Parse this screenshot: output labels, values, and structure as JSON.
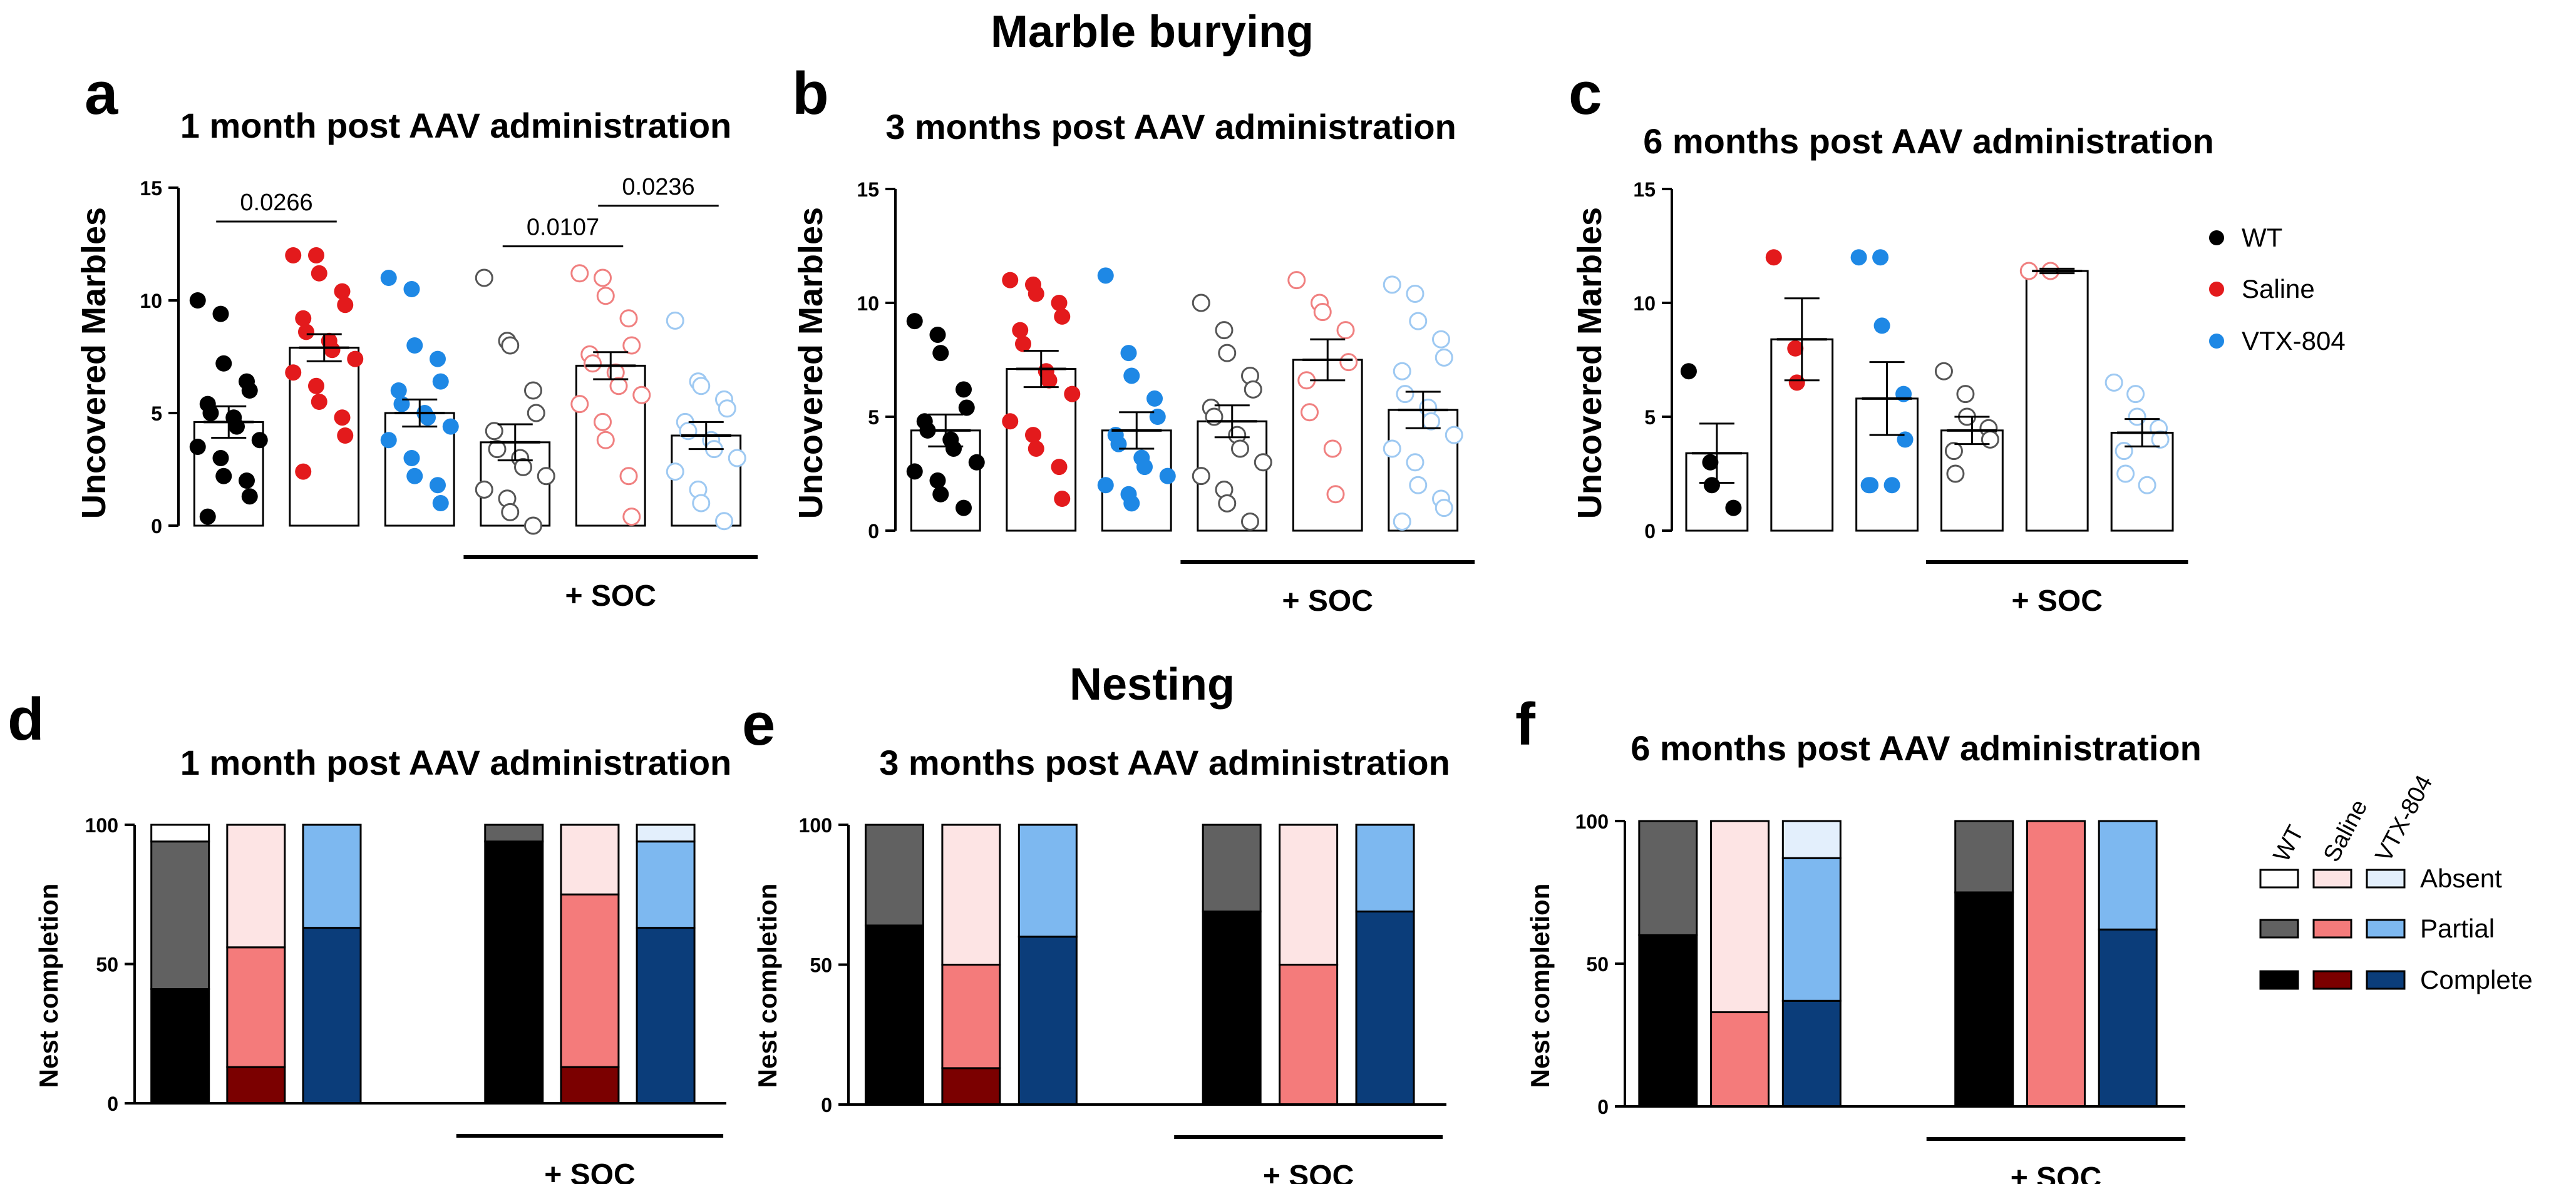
{
  "figure": {
    "section_titles": {
      "marble": "Marble burying",
      "nesting": "Nesting"
    },
    "soc_label": "+ SOC",
    "colors": {
      "wt": "#000000",
      "saline": "#e31a1c",
      "vtx": "#1e88e5",
      "wt_soc": "#555555",
      "saline_soc": "#f08080",
      "vtx_soc": "#9ec9f2",
      "nest_wt_complete": "#000000",
      "nest_wt_partial": "#616161",
      "nest_wt_absent": "#ffffff",
      "nest_saline_complete": "#7b0000",
      "nest_saline_partial": "#f47b7b",
      "nest_saline_absent": "#fde4e4",
      "nest_vtx_complete": "#0b3d7a",
      "nest_vtx_partial": "#7db8f0",
      "nest_vtx_absent": "#e3effc"
    },
    "legend_marble": [
      {
        "label": "WT",
        "color": "#000000"
      },
      {
        "label": "Saline",
        "color": "#e31a1c"
      },
      {
        "label": "VTX-804",
        "color": "#1e88e5"
      }
    ],
    "legend_nesting": {
      "group_headers": [
        "WT",
        "Saline",
        "VTX-804"
      ],
      "rows": [
        "Absent",
        "Partial",
        "Complete"
      ]
    }
  },
  "chart_data": [
    {
      "id": "a",
      "type": "scatter",
      "subtype": "bar-with-points",
      "panel_letter": "a",
      "title": "1 month post AAV administration",
      "ylabel": "Uncovered Marbles",
      "ylim": [
        0,
        15
      ],
      "yticks": [
        0,
        5,
        10,
        15
      ],
      "groups": [
        "WT",
        "Saline",
        "VTX-804",
        "WT + SOC",
        "Saline + SOC",
        "VTX-804 + SOC"
      ],
      "means": [
        4.6,
        7.9,
        5.0,
        3.7,
        7.1,
        4.0
      ],
      "sem": [
        0.7,
        0.6,
        0.6,
        0.8,
        0.6,
        0.6
      ],
      "points": [
        [
          10,
          9.4,
          7.2,
          6.4,
          6.0,
          5.4,
          5.0,
          4.8,
          4.4,
          3.8,
          3.5,
          3.0,
          2.2,
          2.0,
          1.3,
          0.4
        ],
        [
          12,
          12,
          11.2,
          10.4,
          9.8,
          9.2,
          8.6,
          8.2,
          7.8,
          7.4,
          6.8,
          6.2,
          5.5,
          4.8,
          4.0,
          2.4
        ],
        [
          11,
          10.5,
          8.0,
          7.4,
          6.4,
          6.0,
          5.4,
          5.0,
          4.8,
          4.4,
          3.8,
          3.0,
          2.2,
          1.8,
          1.0
        ],
        [
          11,
          8.2,
          8.0,
          6.0,
          5.0,
          4.2,
          3.4,
          3.0,
          2.6,
          2.2,
          1.6,
          1.2,
          0.6,
          0.0
        ],
        [
          11.2,
          11.0,
          10.2,
          9.2,
          8.0,
          7.6,
          7.2,
          6.8,
          6.2,
          5.8,
          5.4,
          4.6,
          3.8,
          2.2,
          0.4
        ],
        [
          9.1,
          6.4,
          6.2,
          5.6,
          5.2,
          4.6,
          4.2,
          3.8,
          3.4,
          3.0,
          2.4,
          1.6,
          1.0,
          0.2
        ]
      ],
      "brackets": [
        {
          "from": 0,
          "to": 1,
          "label": "0.0266",
          "y": 13.5
        },
        {
          "from": 3,
          "to": 4,
          "label": "0.0107",
          "y": 12.4
        },
        {
          "from": 4,
          "to": 5,
          "label": "0.0236",
          "y": 14.2
        }
      ],
      "soc_label": "+ SOC"
    },
    {
      "id": "b",
      "type": "scatter",
      "subtype": "bar-with-points",
      "panel_letter": "b",
      "title": "3 months post AAV administration",
      "ylabel": "Uncovered Marbles",
      "ylim": [
        0,
        15
      ],
      "yticks": [
        0,
        5,
        10,
        15
      ],
      "groups": [
        "WT",
        "Saline",
        "VTX-804",
        "WT + SOC",
        "Saline + SOC",
        "VTX-804 + SOC"
      ],
      "means": [
        4.4,
        7.1,
        4.4,
        4.8,
        7.5,
        5.3
      ],
      "sem": [
        0.7,
        0.8,
        0.8,
        0.7,
        0.9,
        0.8
      ],
      "points": [
        [
          9.2,
          8.6,
          7.8,
          6.2,
          5.4,
          4.8,
          4.4,
          4.0,
          3.6,
          3.0,
          2.6,
          2.2,
          1.6,
          1.0
        ],
        [
          11,
          10.8,
          10.4,
          10.0,
          9.4,
          8.8,
          8.2,
          7.0,
          6.6,
          6.0,
          4.8,
          4.2,
          3.6,
          2.8,
          1.4
        ],
        [
          11.2,
          7.8,
          6.8,
          5.8,
          5.0,
          4.2,
          3.8,
          3.2,
          2.8,
          2.4,
          2.0,
          1.6,
          1.2
        ],
        [
          10,
          8.8,
          7.8,
          6.8,
          6.2,
          5.4,
          5.0,
          4.2,
          3.6,
          3.0,
          2.4,
          1.8,
          1.2,
          0.4
        ],
        [
          11,
          10.0,
          9.6,
          8.8,
          7.4,
          6.6,
          5.2,
          3.6,
          1.6
        ],
        [
          10.8,
          10.4,
          9.2,
          8.4,
          7.6,
          7.0,
          6.0,
          5.4,
          4.8,
          4.2,
          3.6,
          3.0,
          2.0,
          1.4,
          1.0,
          0.4
        ]
      ],
      "brackets": [],
      "soc_label": "+ SOC"
    },
    {
      "id": "c",
      "type": "scatter",
      "subtype": "bar-with-points",
      "panel_letter": "c",
      "title": "6 months post AAV administration",
      "ylabel": "Uncovered Marbles",
      "ylim": [
        0,
        15
      ],
      "yticks": [
        0,
        5,
        10,
        15
      ],
      "groups": [
        "WT",
        "Saline",
        "VTX-804",
        "WT + SOC",
        "Saline + SOC",
        "VTX-804 + SOC"
      ],
      "means": [
        3.4,
        8.4,
        5.8,
        4.4,
        11.4,
        4.3
      ],
      "sem": [
        1.3,
        1.8,
        1.6,
        0.6,
        0.1,
        0.6
      ],
      "points": [
        [
          7.0,
          3.0,
          2.0,
          1.0
        ],
        [
          12.0,
          8.0,
          6.5
        ],
        [
          12.0,
          12.0,
          9.0,
          6.0,
          4.0,
          2.0,
          2.0,
          2.0
        ],
        [
          7.0,
          6.0,
          5.0,
          4.5,
          4.0,
          3.5,
          2.5
        ],
        [
          11.4,
          11.4
        ],
        [
          6.5,
          6.0,
          5.0,
          4.5,
          4.0,
          3.5,
          2.5,
          2.0
        ]
      ],
      "brackets": [],
      "soc_label": "+ SOC"
    },
    {
      "id": "d",
      "type": "bar",
      "subtype": "stacked",
      "panel_letter": "d",
      "title": "1 month post AAV administration",
      "ylabel": "Nest completion",
      "ylim": [
        0,
        100
      ],
      "yticks": [
        0,
        50,
        100
      ],
      "categories": [
        "WT",
        "Saline",
        "VTX-804",
        "WT + SOC",
        "Saline + SOC",
        "VTX-804 + SOC"
      ],
      "series": [
        {
          "name": "Complete",
          "values": [
            41,
            13,
            63,
            94,
            13,
            63
          ]
        },
        {
          "name": "Partial",
          "values": [
            53,
            43,
            37,
            6,
            62,
            31
          ]
        },
        {
          "name": "Absent",
          "values": [
            6,
            44,
            0,
            0,
            25,
            6
          ]
        }
      ],
      "soc_label": "+ SOC"
    },
    {
      "id": "e",
      "type": "bar",
      "subtype": "stacked",
      "panel_letter": "e",
      "title": "3 months post AAV administration",
      "ylabel": "Nest completion",
      "ylim": [
        0,
        100
      ],
      "yticks": [
        0,
        50,
        100
      ],
      "categories": [
        "WT",
        "Saline",
        "VTX-804",
        "WT + SOC",
        "Saline + SOC",
        "VTX-804 + SOC"
      ],
      "series": [
        {
          "name": "Complete",
          "values": [
            64,
            13,
            60,
            69,
            0,
            69
          ]
        },
        {
          "name": "Partial",
          "values": [
            36,
            37,
            40,
            31,
            50,
            31
          ]
        },
        {
          "name": "Absent",
          "values": [
            0,
            50,
            0,
            0,
            50,
            0
          ]
        }
      ],
      "soc_label": "+ SOC"
    },
    {
      "id": "f",
      "type": "bar",
      "subtype": "stacked",
      "panel_letter": "f",
      "title": "6 months post AAV administration",
      "ylabel": "Nest completion",
      "ylim": [
        0,
        100
      ],
      "yticks": [
        0,
        50,
        100
      ],
      "categories": [
        "WT",
        "Saline",
        "VTX-804",
        "WT + SOC",
        "Saline + SOC",
        "VTX-804 + SOC"
      ],
      "series": [
        {
          "name": "Complete",
          "values": [
            60,
            0,
            37,
            75,
            0,
            62
          ]
        },
        {
          "name": "Partial",
          "values": [
            40,
            33,
            50,
            25,
            100,
            38
          ]
        },
        {
          "name": "Absent",
          "values": [
            0,
            67,
            13,
            0,
            0,
            0
          ]
        }
      ],
      "soc_label": "+ SOC"
    }
  ]
}
